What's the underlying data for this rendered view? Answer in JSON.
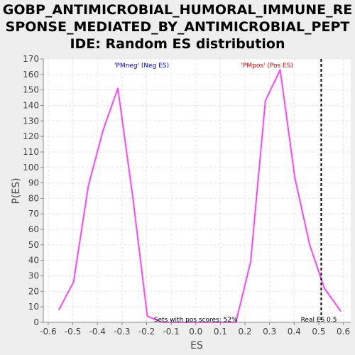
{
  "chart_data": {
    "type": "line",
    "title_lines": [
      "GOBP_ANTIMICROBIAL_HUMORAL_IMMUNE_RE",
      "SPONSE_MEDIATED_BY_ANTIMICROBIAL_PEPT",
      "IDE: Random ES distribution"
    ],
    "xlabel": "ES",
    "ylabel": "P(ES)",
    "xlim": [
      -0.62,
      0.63
    ],
    "ylim": [
      0,
      170
    ],
    "xticks": [
      -0.6,
      -0.5,
      -0.4,
      -0.3,
      -0.2,
      -0.1,
      0.0,
      0.1,
      0.2,
      0.3,
      0.4,
      0.5,
      0.6
    ],
    "xtick_labels": [
      "-0.6",
      "-0.5",
      "-0.4",
      "-0.3",
      "-0.2",
      "-0.1",
      "0.0",
      "0.1",
      "0.2",
      "0.3",
      "0.4",
      "0.5",
      "0.6"
    ],
    "yticks": [
      0,
      10,
      20,
      30,
      40,
      50,
      60,
      70,
      80,
      90,
      100,
      110,
      120,
      130,
      140,
      150,
      160,
      170
    ],
    "ytick_labels": [
      "0",
      "10",
      "20",
      "30",
      "40",
      "50",
      "60",
      "70",
      "80",
      "90",
      "100",
      "110",
      "120",
      "130",
      "140",
      "150",
      "160",
      "170"
    ],
    "grid": true,
    "line_color": "#ff44ff",
    "series": [
      {
        "x": [
          -0.557,
          -0.497,
          -0.437,
          -0.377,
          -0.317,
          -0.257,
          -0.197,
          -0.137,
          -0.077,
          -0.017,
          0.043,
          0.103,
          0.163,
          0.223,
          0.283,
          0.343,
          0.403,
          0.463,
          0.523,
          0.59
        ],
        "y": [
          8,
          26,
          88,
          124,
          151,
          82,
          4,
          0,
          0,
          0,
          0,
          0,
          0,
          39,
          143,
          163,
          93,
          50,
          22,
          7
        ]
      }
    ],
    "real_es": 0.51,
    "real_es_color": "#000000",
    "annotations": {
      "neg_label": "'PMneg' (Neg ES)",
      "neg_color": "#0000cc",
      "pos_label": "'PMpos' (Pos ES)",
      "pos_color": "#cc0000",
      "pos_scores": "Sets with pos scores: 52%",
      "real_es_label": "Real ES 0.5",
      "text_color": "#000000"
    }
  }
}
